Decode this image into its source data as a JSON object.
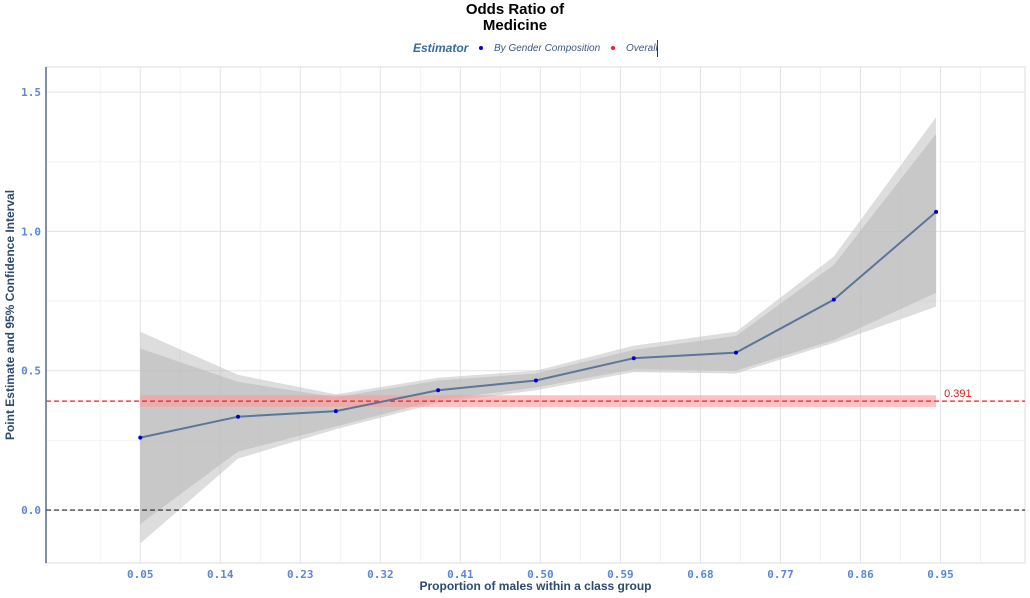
{
  "chart_data": {
    "type": "line",
    "title_line1": "Odds Ratio of",
    "title_line2": "Medicine",
    "xlabel": "Proportion of males within a class group",
    "ylabel": "Point Estimate and 95% Confidence Interval",
    "legend": {
      "title": "Estimator",
      "entries": [
        "By Gender Composition",
        "Overall"
      ],
      "position": "top-center"
    },
    "x_ticks": [
      "0.05",
      "0.14",
      "0.23",
      "0.32",
      "0.41",
      "0.50",
      "0.59",
      "0.68",
      "0.77",
      "0.86",
      "0.95"
    ],
    "y_ticks": [
      "0.0",
      "0.5",
      "1.0",
      "1.5"
    ],
    "ylim": [
      -0.19,
      1.59
    ],
    "xlim": [
      -0.056,
      1.045
    ],
    "grid": true,
    "series": [
      {
        "name": "By Gender Composition",
        "x": [
          0.05,
          0.16,
          0.27,
          0.385,
          0.495,
          0.605,
          0.72,
          0.83,
          0.945
        ],
        "y": [
          0.26,
          0.335,
          0.355,
          0.43,
          0.465,
          0.545,
          0.565,
          0.755,
          1.07
        ],
        "ci_inner_lower": [
          -0.05,
          0.21,
          0.3,
          0.395,
          0.44,
          0.505,
          0.5,
          0.61,
          0.78
        ],
        "ci_inner_upper": [
          0.58,
          0.46,
          0.405,
          0.465,
          0.49,
          0.575,
          0.625,
          0.88,
          1.35
        ],
        "ci_outer_lower": [
          -0.12,
          0.185,
          0.29,
          0.385,
          0.43,
          0.495,
          0.49,
          0.6,
          0.73
        ],
        "ci_outer_upper": [
          0.64,
          0.485,
          0.415,
          0.475,
          0.5,
          0.59,
          0.64,
          0.91,
          1.41
        ]
      }
    ],
    "overall": {
      "name": "Overall",
      "value": 0.391,
      "label": "0.391",
      "ci_lower": 0.37,
      "ci_upper": 0.412
    },
    "reference_line": 0,
    "colors": {
      "line": "#5b7699",
      "points": "#0000cc",
      "ci_band": "#bbbbbb",
      "overall": "#ee2222",
      "overall_band": "#ff9999",
      "zero_line": "#222222",
      "axis_text": "#5b87d9",
      "axis_title": "#2d4a6e",
      "legend_title": "#3a6a9a"
    }
  }
}
